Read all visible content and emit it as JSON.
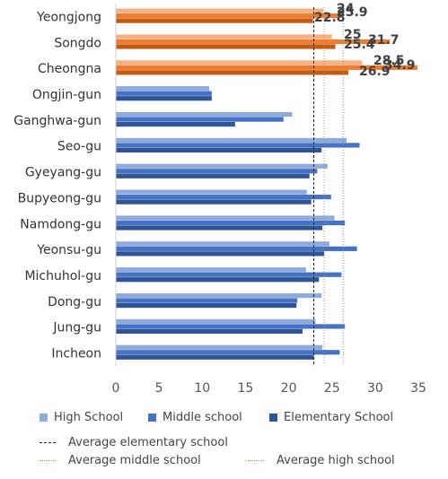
{
  "chart_data": {
    "type": "bar",
    "orientation": "horizontal",
    "categories": [
      "Yeongjong",
      "Songdo",
      "Cheongna",
      "Ongjin-gun",
      "Ganghwa-gun",
      "Seo-gu",
      "Gyeyang-gu",
      "Bupyeong-gu",
      "Namdong-gu",
      "Yeonsu-gu",
      "Michuhol-gu",
      "Dong-gu",
      "Jung-gu",
      "Incheon"
    ],
    "series": [
      {
        "name": "High School",
        "color": "#8faadc",
        "highlight_color": "#f4b183",
        "values": [
          24,
          25,
          28.5,
          10.8,
          20.4,
          26.7,
          24.5,
          22.1,
          25.3,
          24.7,
          22,
          23.8,
          23.1,
          23.9
        ],
        "labels": [
          "24",
          "25",
          "28.5",
          null,
          null,
          null,
          null,
          null,
          null,
          null,
          null,
          null,
          null,
          null
        ]
      },
      {
        "name": "Middle school",
        "color": "#4472c4",
        "highlight_color": "#ed7d31",
        "values": [
          25.9,
          31.7,
          34.9,
          11.1,
          19.4,
          28.2,
          23.3,
          24.9,
          26.5,
          27.9,
          26.1,
          21,
          26.5,
          25.9
        ],
        "labels": [
          "25.9",
          "31.7",
          "34.9",
          null,
          null,
          null,
          null,
          null,
          null,
          null,
          null,
          null,
          null,
          null
        ]
      },
      {
        "name": "Elementary School",
        "color": "#2f5597",
        "highlight_color": "#c55a11",
        "values": [
          22.8,
          25.4,
          26.9,
          11.1,
          13.8,
          23.8,
          22.4,
          22.6,
          23.9,
          24.1,
          23.5,
          20.9,
          21.6,
          22.9
        ],
        "labels": [
          "22.8",
          "25.4",
          "26.9",
          null,
          null,
          null,
          null,
          null,
          null,
          null,
          null,
          null,
          null,
          null
        ]
      }
    ],
    "highlighted_categories": [
      "Yeongjong",
      "Songdo",
      "Cheongna"
    ],
    "reference_lines": [
      {
        "name": "Average elementary school",
        "value": 22.9,
        "color": "#222222",
        "style": "dashed"
      },
      {
        "name": "Average middle school",
        "value": 24.1,
        "color": "#ed7d31",
        "style": "dotted"
      },
      {
        "name": "Average high school",
        "value": 26.3,
        "color": "#70ad47",
        "style": "dotted"
      }
    ],
    "x_ticks": [
      0,
      5,
      10,
      15,
      20,
      25,
      30,
      35
    ],
    "xlim": [
      0,
      35
    ],
    "xlabel": "",
    "ylabel": "",
    "title": "",
    "grid": false,
    "legend_position": "bottom"
  }
}
